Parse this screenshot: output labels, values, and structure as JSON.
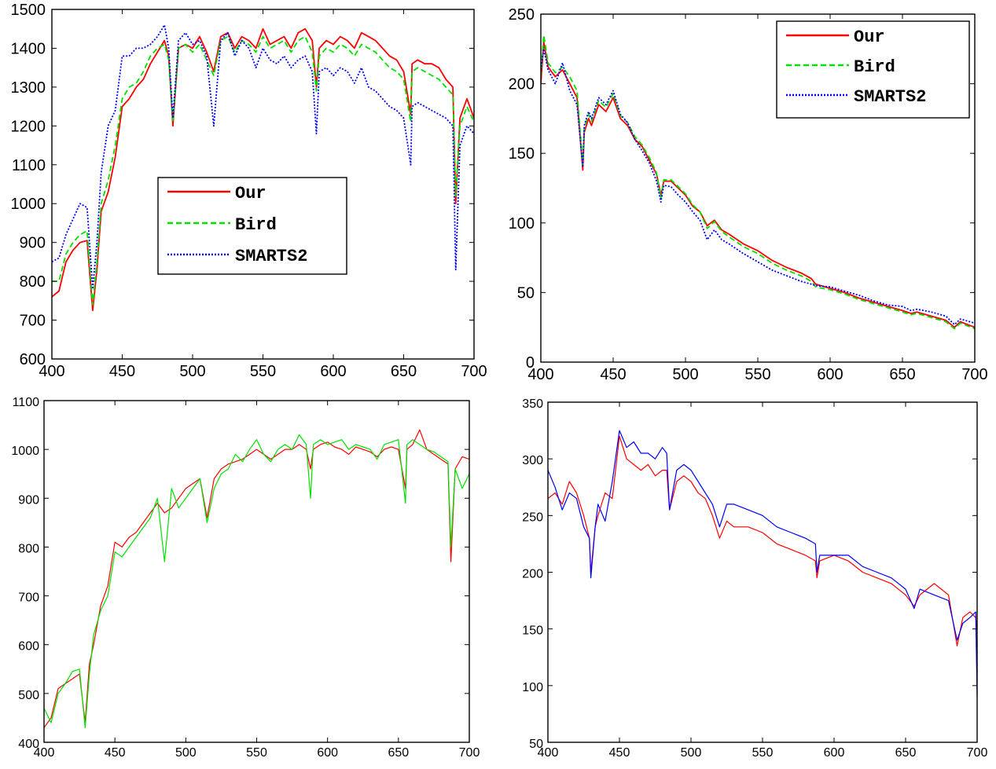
{
  "chart_data": [
    {
      "type": "line",
      "xlim": [
        400,
        700
      ],
      "ylim": [
        600,
        1500
      ],
      "x_ticks": [
        400,
        450,
        500,
        550,
        600,
        650,
        700
      ],
      "y_ticks": [
        600,
        700,
        800,
        900,
        1000,
        1100,
        1200,
        1300,
        1400,
        1500
      ],
      "grid": false,
      "legend_placement": "center-left",
      "x": [
        400,
        405,
        410,
        415,
        420,
        425,
        429,
        432,
        435,
        440,
        445,
        450,
        455,
        460,
        465,
        470,
        475,
        480,
        483,
        486,
        490,
        495,
        500,
        505,
        510,
        515,
        520,
        525,
        530,
        535,
        540,
        545,
        550,
        555,
        560,
        565,
        570,
        575,
        580,
        585,
        588,
        590,
        595,
        600,
        605,
        610,
        615,
        620,
        625,
        630,
        635,
        640,
        645,
        650,
        655,
        656,
        660,
        665,
        670,
        675,
        680,
        685,
        687,
        690,
        695,
        700
      ],
      "series": [
        {
          "name": "Our",
          "color": "#ff0000",
          "style": "solid",
          "values": [
            760,
            775,
            850,
            880,
            900,
            905,
            725,
            830,
            980,
            1030,
            1120,
            1250,
            1270,
            1300,
            1320,
            1360,
            1390,
            1420,
            1380,
            1200,
            1400,
            1410,
            1400,
            1430,
            1390,
            1340,
            1430,
            1440,
            1400,
            1430,
            1420,
            1400,
            1450,
            1410,
            1420,
            1430,
            1400,
            1440,
            1450,
            1420,
            1300,
            1400,
            1420,
            1410,
            1430,
            1420,
            1400,
            1440,
            1430,
            1420,
            1400,
            1380,
            1370,
            1340,
            1230,
            1360,
            1370,
            1360,
            1360,
            1350,
            1320,
            1300,
            1000,
            1220,
            1270,
            1220
          ]
        },
        {
          "name": "Bird",
          "color": "#00e000",
          "style": "dashed",
          "values": [
            800,
            800,
            870,
            900,
            920,
            930,
            740,
            850,
            1000,
            1060,
            1150,
            1270,
            1300,
            1310,
            1340,
            1380,
            1400,
            1410,
            1370,
            1210,
            1400,
            1410,
            1390,
            1410,
            1370,
            1330,
            1420,
            1430,
            1390,
            1420,
            1410,
            1390,
            1430,
            1400,
            1410,
            1420,
            1390,
            1420,
            1430,
            1390,
            1290,
            1380,
            1400,
            1390,
            1410,
            1400,
            1380,
            1410,
            1400,
            1390,
            1370,
            1350,
            1340,
            1320,
            1210,
            1340,
            1350,
            1340,
            1330,
            1320,
            1300,
            1280,
            1020,
            1200,
            1250,
            1210
          ]
        },
        {
          "name": "SMARTS2",
          "color": "#0000ff",
          "style": "dotted",
          "values": [
            850,
            860,
            920,
            960,
            1000,
            990,
            780,
            900,
            1080,
            1200,
            1240,
            1380,
            1380,
            1400,
            1400,
            1410,
            1430,
            1460,
            1400,
            1220,
            1420,
            1440,
            1410,
            1420,
            1380,
            1200,
            1420,
            1440,
            1380,
            1420,
            1400,
            1350,
            1400,
            1370,
            1360,
            1380,
            1350,
            1370,
            1380,
            1340,
            1180,
            1340,
            1350,
            1330,
            1350,
            1340,
            1310,
            1350,
            1300,
            1290,
            1270,
            1250,
            1240,
            1220,
            1100,
            1250,
            1260,
            1250,
            1240,
            1230,
            1220,
            1200,
            830,
            1150,
            1200,
            1180
          ]
        }
      ]
    },
    {
      "type": "line",
      "xlim": [
        400,
        700
      ],
      "ylim": [
        0,
        250
      ],
      "x_ticks": [
        400,
        450,
        500,
        550,
        600,
        650,
        700
      ],
      "y_ticks": [
        0,
        50,
        100,
        150,
        200,
        250
      ],
      "grid": false,
      "legend_placement": "top-right",
      "x": [
        400,
        402,
        405,
        410,
        415,
        420,
        425,
        429,
        430,
        433,
        435,
        440,
        445,
        450,
        455,
        460,
        465,
        470,
        475,
        480,
        483,
        485,
        490,
        495,
        500,
        505,
        510,
        515,
        520,
        525,
        530,
        540,
        550,
        560,
        570,
        580,
        587,
        590,
        600,
        610,
        620,
        630,
        640,
        650,
        656,
        660,
        670,
        680,
        686,
        690,
        700
      ],
      "series": [
        {
          "name": "Our",
          "color": "#ff0000",
          "style": "solid",
          "values": [
            200,
            230,
            212,
            205,
            210,
            200,
            190,
            138,
            165,
            175,
            170,
            185,
            180,
            190,
            175,
            170,
            160,
            155,
            145,
            135,
            120,
            130,
            130,
            125,
            120,
            112,
            108,
            98,
            102,
            95,
            92,
            85,
            80,
            73,
            68,
            64,
            60,
            56,
            53,
            50,
            46,
            43,
            40,
            37,
            35,
            36,
            33,
            30,
            25,
            29,
            25
          ]
        },
        {
          "name": "Bird",
          "color": "#00e000",
          "style": "dashed",
          "values": [
            205,
            235,
            215,
            208,
            212,
            205,
            195,
            142,
            168,
            178,
            173,
            188,
            183,
            193,
            177,
            172,
            162,
            156,
            147,
            136,
            118,
            131,
            131,
            126,
            121,
            113,
            108,
            96,
            101,
            94,
            90,
            83,
            78,
            71,
            66,
            62,
            58,
            54,
            52,
            49,
            45,
            42,
            39,
            36,
            34,
            35,
            32,
            29,
            24,
            28,
            24
          ]
        },
        {
          "name": "SMARTS2",
          "color": "#0000ff",
          "style": "dotted",
          "values": [
            210,
            225,
            210,
            200,
            215,
            195,
            185,
            140,
            170,
            180,
            175,
            190,
            185,
            195,
            178,
            172,
            160,
            152,
            143,
            130,
            115,
            127,
            126,
            120,
            115,
            108,
            102,
            88,
            95,
            88,
            85,
            78,
            72,
            66,
            62,
            58,
            56,
            55,
            54,
            51,
            48,
            44,
            41,
            40,
            37,
            38,
            36,
            33,
            27,
            31,
            28
          ]
        }
      ]
    },
    {
      "type": "line",
      "xlim": [
        400,
        700
      ],
      "ylim": [
        400,
        1100
      ],
      "x_ticks": [
        400,
        450,
        500,
        550,
        600,
        650,
        700
      ],
      "y_ticks": [
        400,
        500,
        600,
        700,
        800,
        900,
        1000,
        1100
      ],
      "grid": false,
      "legend_placement": "none",
      "x": [
        400,
        405,
        410,
        415,
        420,
        425,
        429,
        432,
        435,
        440,
        445,
        450,
        455,
        460,
        465,
        470,
        475,
        480,
        485,
        490,
        495,
        500,
        505,
        510,
        515,
        520,
        525,
        530,
        535,
        540,
        545,
        550,
        555,
        560,
        565,
        570,
        575,
        580,
        585,
        588,
        590,
        595,
        600,
        605,
        610,
        615,
        620,
        625,
        630,
        635,
        640,
        645,
        650,
        655,
        656,
        660,
        665,
        670,
        675,
        680,
        685,
        687,
        690,
        695,
        700
      ],
      "series": [
        {
          "color": "#ff0000",
          "style": "solid",
          "values": [
            430,
            450,
            510,
            520,
            530,
            540,
            440,
            560,
            600,
            680,
            720,
            810,
            800,
            820,
            830,
            850,
            870,
            890,
            870,
            880,
            900,
            920,
            930,
            940,
            860,
            940,
            960,
            970,
            975,
            980,
            990,
            1000,
            990,
            980,
            990,
            1000,
            1000,
            1010,
            1000,
            960,
            1000,
            1010,
            1015,
            1005,
            1000,
            990,
            1005,
            1000,
            995,
            985,
            1000,
            1005,
            1000,
            920,
            1000,
            1010,
            1040,
            1000,
            990,
            980,
            970,
            770,
            960,
            985,
            980
          ]
        },
        {
          "color": "#00e000",
          "style": "solid",
          "values": [
            470,
            440,
            500,
            520,
            545,
            550,
            430,
            540,
            620,
            670,
            700,
            790,
            780,
            800,
            820,
            840,
            860,
            900,
            770,
            920,
            880,
            900,
            920,
            940,
            850,
            920,
            950,
            960,
            990,
            975,
            1000,
            1020,
            990,
            975,
            1000,
            1010,
            1000,
            1030,
            1010,
            900,
            1010,
            1020,
            1010,
            1015,
            1020,
            1000,
            1010,
            1005,
            1000,
            980,
            1010,
            1015,
            1020,
            890,
            1010,
            1020,
            1010,
            1000,
            995,
            985,
            975,
            800,
            960,
            920,
            950
          ]
        }
      ]
    },
    {
      "type": "line",
      "xlim": [
        400,
        700
      ],
      "ylim": [
        50,
        350
      ],
      "x_ticks": [
        400,
        450,
        500,
        550,
        600,
        650,
        700
      ],
      "y_ticks": [
        50,
        100,
        150,
        200,
        250,
        300,
        350
      ],
      "grid": false,
      "legend_placement": "none",
      "x": [
        400,
        405,
        410,
        415,
        420,
        425,
        429,
        430,
        433,
        435,
        440,
        445,
        450,
        455,
        460,
        465,
        470,
        475,
        480,
        483,
        485,
        490,
        495,
        500,
        505,
        510,
        515,
        520,
        525,
        530,
        540,
        550,
        560,
        570,
        580,
        587,
        588,
        590,
        600,
        610,
        620,
        630,
        640,
        650,
        656,
        660,
        670,
        680,
        686,
        690,
        695,
        699,
        700
      ],
      "series": [
        {
          "color": "#ff0000",
          "style": "solid",
          "values": [
            265,
            270,
            260,
            280,
            270,
            250,
            230,
            200,
            240,
            250,
            270,
            265,
            320,
            300,
            295,
            290,
            295,
            285,
            290,
            290,
            255,
            280,
            285,
            280,
            270,
            265,
            250,
            230,
            245,
            240,
            240,
            235,
            225,
            220,
            215,
            210,
            195,
            210,
            215,
            210,
            200,
            195,
            190,
            180,
            170,
            180,
            190,
            180,
            135,
            160,
            165,
            160,
            150
          ]
        },
        {
          "color": "#0000ff",
          "style": "solid",
          "values": [
            290,
            275,
            255,
            270,
            265,
            240,
            230,
            195,
            240,
            260,
            245,
            280,
            325,
            310,
            315,
            305,
            305,
            300,
            310,
            305,
            255,
            290,
            295,
            290,
            280,
            270,
            260,
            240,
            260,
            260,
            255,
            250,
            240,
            235,
            230,
            225,
            200,
            215,
            215,
            215,
            205,
            200,
            195,
            185,
            168,
            185,
            180,
            175,
            140,
            155,
            160,
            165,
            90
          ]
        }
      ]
    }
  ]
}
